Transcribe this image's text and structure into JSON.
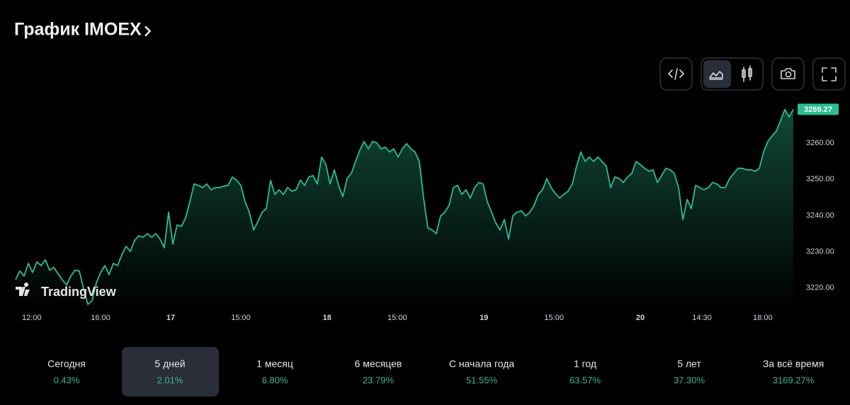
{
  "header": {
    "title": "График IMOEX"
  },
  "chart_data": {
    "type": "area",
    "watermark": "TradingView",
    "color": "#2bbd94",
    "grid": false,
    "values": [
      3222.3,
      3224.7,
      3223.3,
      3226.8,
      3224.3,
      3227.2,
      3226.2,
      3227.8,
      3224.9,
      3225.7,
      3223.9,
      3222.3,
      3220.8,
      3223.3,
      3224.9,
      3224.7,
      3219.8,
      3215.5,
      3216.5,
      3221.4,
      3224.3,
      3226.2,
      3223.7,
      3226.8,
      3226.2,
      3229.2,
      3231.5,
      3230.1,
      3233.1,
      3234.4,
      3234.0,
      3235.0,
      3234.0,
      3235.0,
      3233.5,
      3231.1,
      3240.9,
      3232.1,
      3237.4,
      3237.0,
      3239.3,
      3243.8,
      3248.7,
      3248.3,
      3247.7,
      3248.7,
      3247.1,
      3247.7,
      3247.7,
      3248.1,
      3248.3,
      3250.6,
      3249.7,
      3248.3,
      3243.8,
      3240.9,
      3236.0,
      3238.3,
      3240.9,
      3241.9,
      3249.7,
      3245.8,
      3247.1,
      3245.8,
      3247.7,
      3246.7,
      3247.1,
      3249.7,
      3248.3,
      3250.6,
      3251.0,
      3248.7,
      3256.1,
      3254.1,
      3248.7,
      3252.6,
      3248.3,
      3245.2,
      3250.2,
      3251.6,
      3254.9,
      3258.0,
      3260.4,
      3258.4,
      3260.4,
      3260.0,
      3258.4,
      3258.8,
      3257.5,
      3258.4,
      3256.1,
      3258.4,
      3259.8,
      3258.4,
      3257.5,
      3254.9,
      3244.8,
      3236.6,
      3236.0,
      3235.0,
      3239.9,
      3240.9,
      3242.8,
      3247.7,
      3248.3,
      3245.8,
      3247.1,
      3244.8,
      3247.7,
      3249.1,
      3248.7,
      3243.8,
      3240.9,
      3237.9,
      3236.0,
      3238.9,
      3233.5,
      3239.9,
      3240.9,
      3241.3,
      3239.9,
      3240.9,
      3242.8,
      3245.8,
      3247.1,
      3250.2,
      3247.7,
      3246.1,
      3244.8,
      3245.8,
      3246.7,
      3248.7,
      3253.6,
      3257.5,
      3254.9,
      3256.1,
      3254.9,
      3256.1,
      3254.9,
      3253.6,
      3247.7,
      3250.6,
      3250.2,
      3249.1,
      3250.6,
      3251.6,
      3254.9,
      3254.0,
      3253.0,
      3252.2,
      3252.6,
      3249.1,
      3251.0,
      3253.0,
      3252.6,
      3251.6,
      3247.7,
      3238.9,
      3244.4,
      3241.9,
      3248.3,
      3247.7,
      3247.1,
      3247.7,
      3249.1,
      3248.7,
      3247.7,
      3247.7,
      3250.2,
      3251.6,
      3253.0,
      3253.0,
      3252.6,
      3252.6,
      3252.2,
      3253.0,
      3257.5,
      3260.4,
      3261.9,
      3263.3,
      3266.2,
      3269.2,
      3267.2,
      3269.27
    ],
    "xlim": [
      0,
      183
    ],
    "xticks": [
      {
        "value": 3.8,
        "label": "12:00"
      },
      {
        "value": 20,
        "label": "16:00"
      },
      {
        "value": 36.5,
        "label": "17"
      },
      {
        "value": 53,
        "label": "15:00"
      },
      {
        "value": 73.3,
        "label": "18"
      },
      {
        "value": 89.8,
        "label": "15:00"
      },
      {
        "value": 110.2,
        "label": "19"
      },
      {
        "value": 126.7,
        "label": "15:00"
      },
      {
        "value": 147,
        "label": "20"
      },
      {
        "value": 161.5,
        "label": "14:30"
      },
      {
        "value": 175.8,
        "label": "18:00"
      }
    ],
    "ylim": [
      3214.5,
      3271.1
    ],
    "yticks": [
      {
        "value": 3220,
        "label": "3220.00"
      },
      {
        "value": 3230,
        "label": "3230.00"
      },
      {
        "value": 3240,
        "label": "3240.00"
      },
      {
        "value": 3250,
        "label": "3250.00"
      },
      {
        "value": 3260,
        "label": "3260.00"
      }
    ]
  },
  "periods": {
    "active": 1,
    "items": [
      {
        "label": "Сегодня",
        "change": "0.43%"
      },
      {
        "label": "5 дней",
        "change": "2.01%"
      },
      {
        "label": "1 месяц",
        "change": "6.80%"
      },
      {
        "label": "6 месяцев",
        "change": "23.79%"
      },
      {
        "label": "С начала года",
        "change": "51.55%"
      },
      {
        "label": "1 год",
        "change": "63.57%"
      },
      {
        "label": "5 лет",
        "change": "37.30%"
      },
      {
        "label": "За всё время",
        "change": "3169.27%"
      }
    ]
  }
}
